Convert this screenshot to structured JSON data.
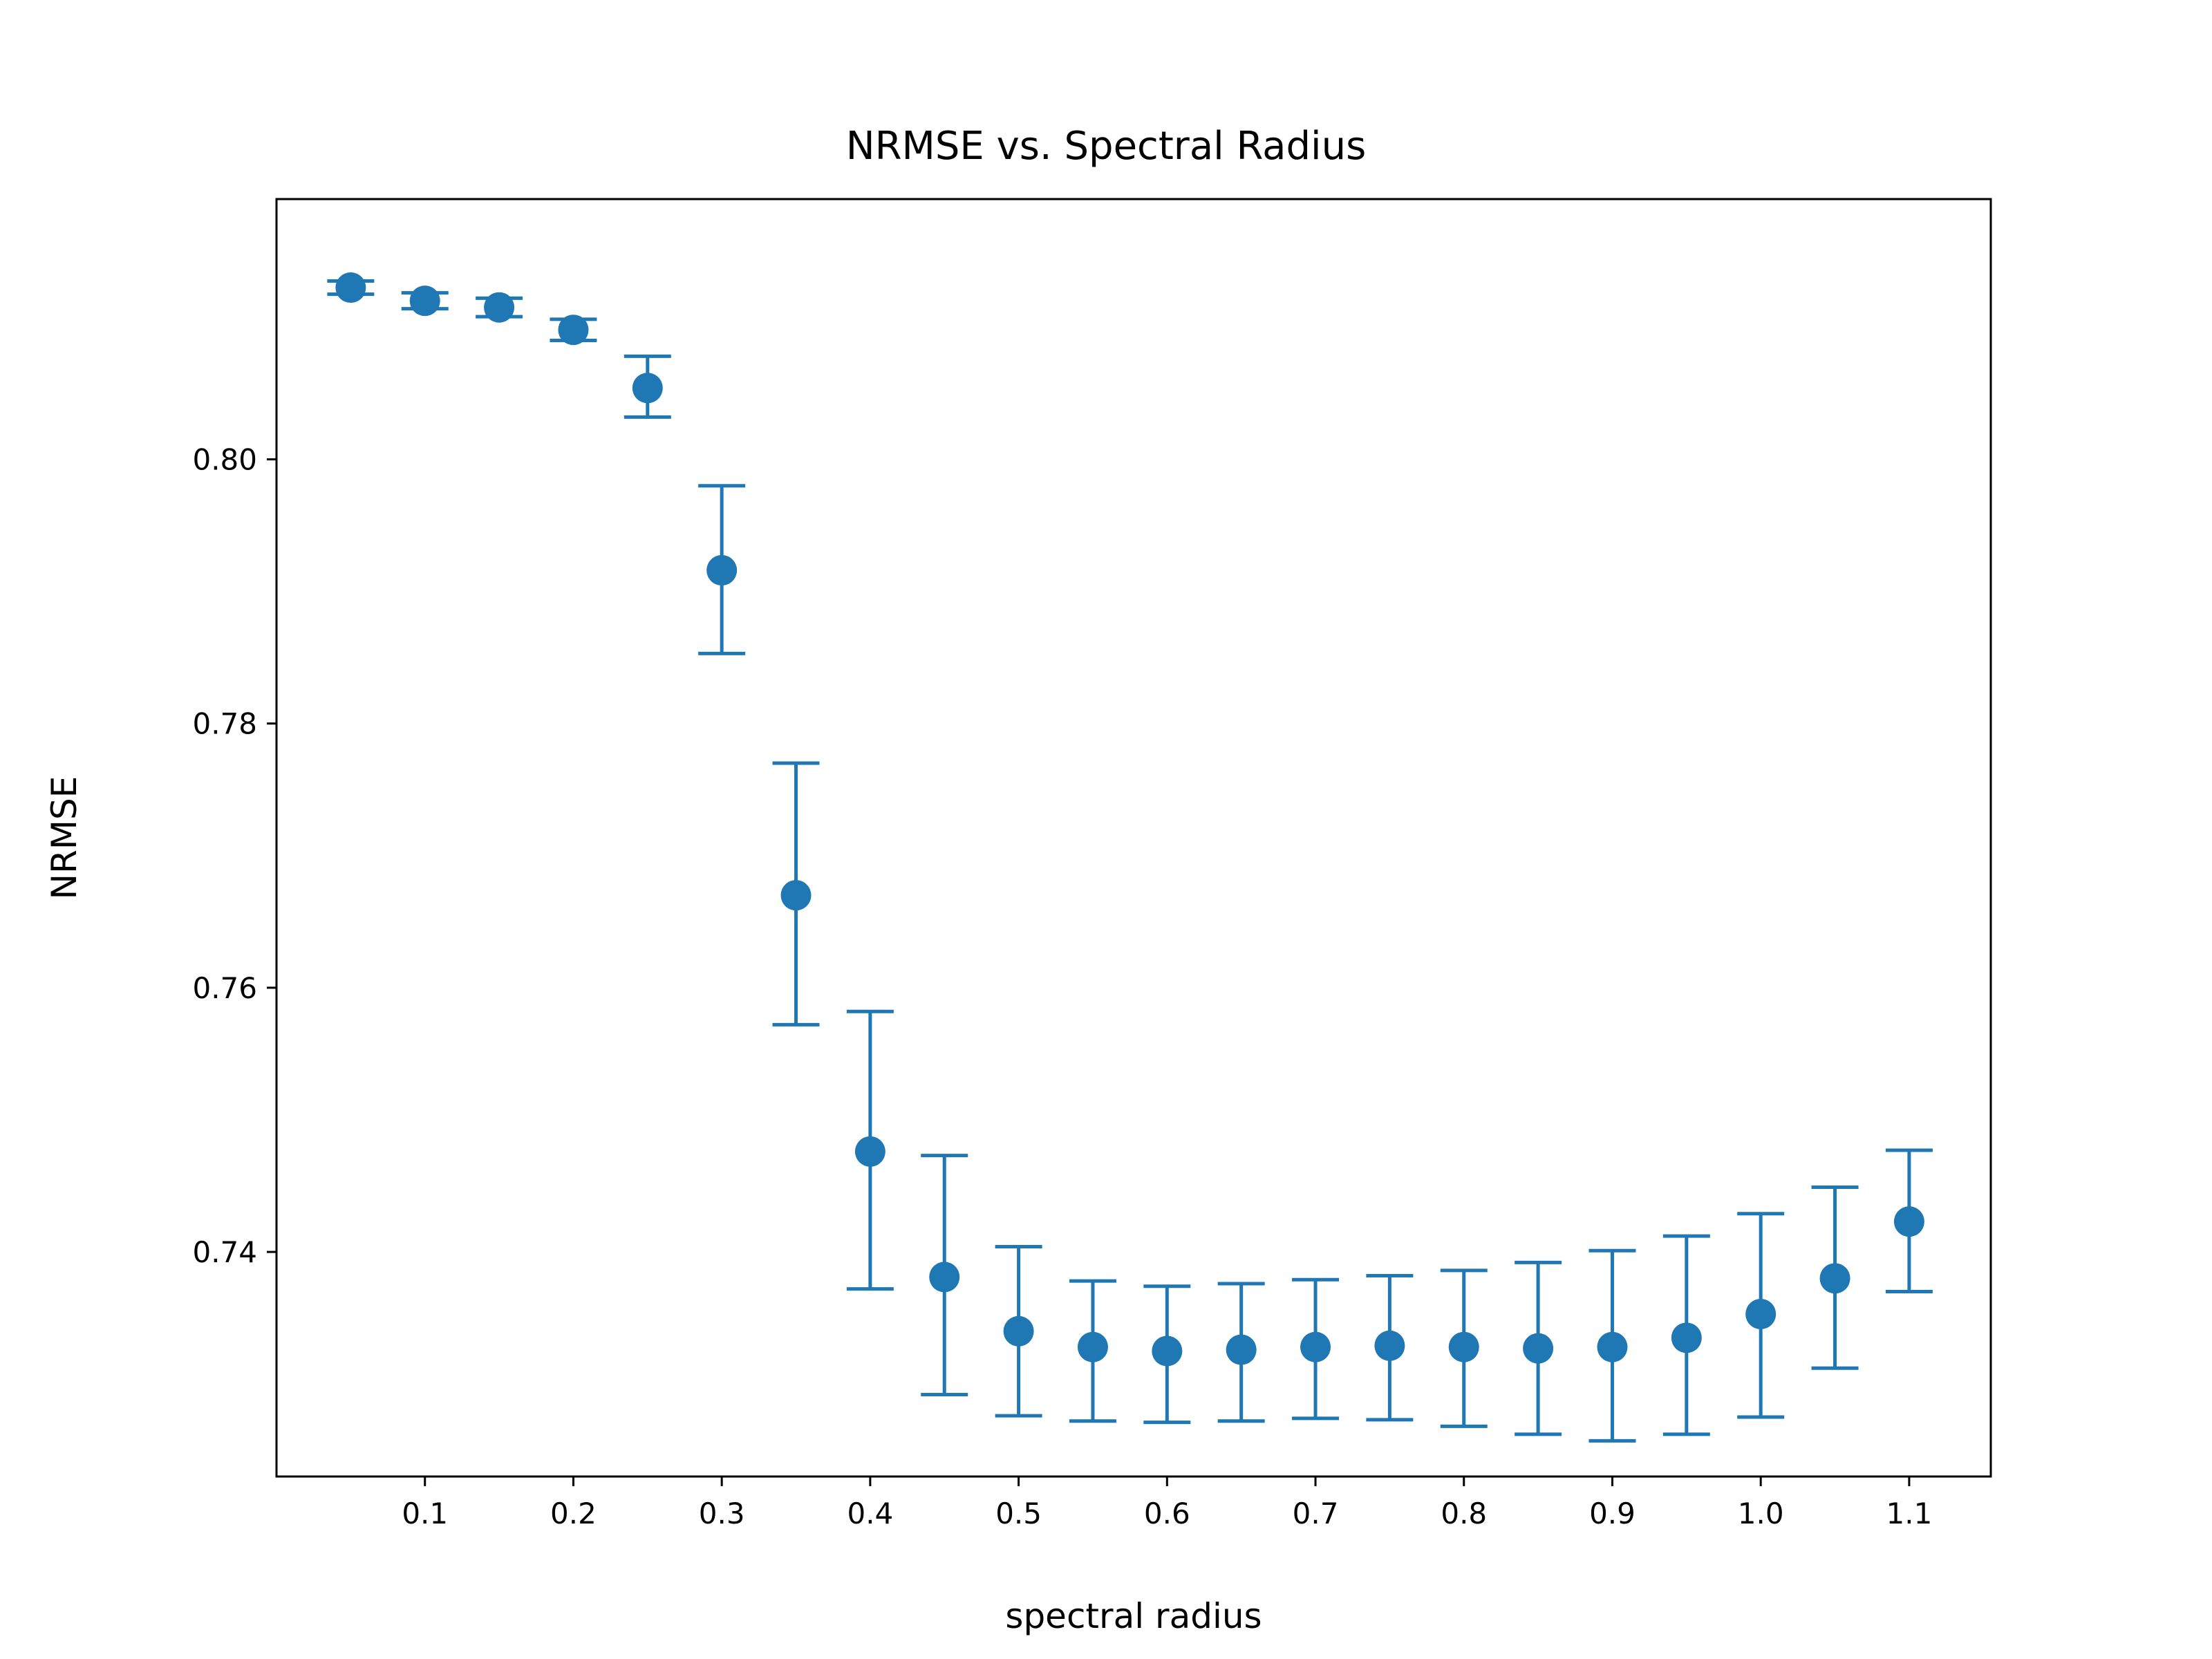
{
  "chart_data": {
    "type": "scatter",
    "title": "NRMSE vs. Spectral Radius",
    "xlabel": "spectral radius",
    "ylabel": "NRMSE",
    "xlim": [
      0.0,
      1.155
    ],
    "ylim": [
      0.723,
      0.8197
    ],
    "xticks": [
      {
        "value": 0.1,
        "label": "0.1"
      },
      {
        "value": 0.2,
        "label": "0.2"
      },
      {
        "value": 0.3,
        "label": "0.3"
      },
      {
        "value": 0.4,
        "label": "0.4"
      },
      {
        "value": 0.5,
        "label": "0.5"
      },
      {
        "value": 0.6,
        "label": "0.6"
      },
      {
        "value": 0.7,
        "label": "0.7"
      },
      {
        "value": 0.8,
        "label": "0.8"
      },
      {
        "value": 0.9,
        "label": "0.9"
      },
      {
        "value": 1.0,
        "label": "1.0"
      },
      {
        "value": 1.1,
        "label": "1.1"
      }
    ],
    "yticks": [
      {
        "value": 0.74,
        "label": "0.74"
      },
      {
        "value": 0.76,
        "label": "0.76"
      },
      {
        "value": 0.78,
        "label": "0.78"
      },
      {
        "value": 0.8,
        "label": "0.80"
      }
    ],
    "grid": false,
    "color": "#1f77b4",
    "series": [
      {
        "x": [
          0.05,
          0.1,
          0.15,
          0.2,
          0.25,
          0.3,
          0.35,
          0.4,
          0.45,
          0.5,
          0.55,
          0.6,
          0.65,
          0.7,
          0.75,
          0.8,
          0.85,
          0.9,
          0.95,
          1.0,
          1.05,
          1.1
        ],
        "y": [
          0.813,
          0.812,
          0.8115,
          0.8098,
          0.8054,
          0.7916,
          0.767,
          0.7476,
          0.7381,
          0.734,
          0.7328,
          0.7325,
          0.7326,
          0.7328,
          0.7329,
          0.7328,
          0.7327,
          0.7328,
          0.7335,
          0.7353,
          0.738,
          0.7423
        ],
        "y_low": [
          0.8125,
          0.8114,
          0.8108,
          0.809,
          0.8032,
          0.7853,
          0.7572,
          0.7372,
          0.7292,
          0.7276,
          0.7272,
          0.7271,
          0.7272,
          0.7274,
          0.7273,
          0.7268,
          0.7262,
          0.7257,
          0.7262,
          0.7275,
          0.7312,
          0.737
        ],
        "y_high": [
          0.8135,
          0.8126,
          0.8122,
          0.8106,
          0.8078,
          0.798,
          0.777,
          0.7582,
          0.7473,
          0.7404,
          0.7378,
          0.7374,
          0.7376,
          0.7379,
          0.7382,
          0.7386,
          0.7392,
          0.7401,
          0.7412,
          0.7429,
          0.7449,
          0.7477
        ]
      }
    ]
  }
}
